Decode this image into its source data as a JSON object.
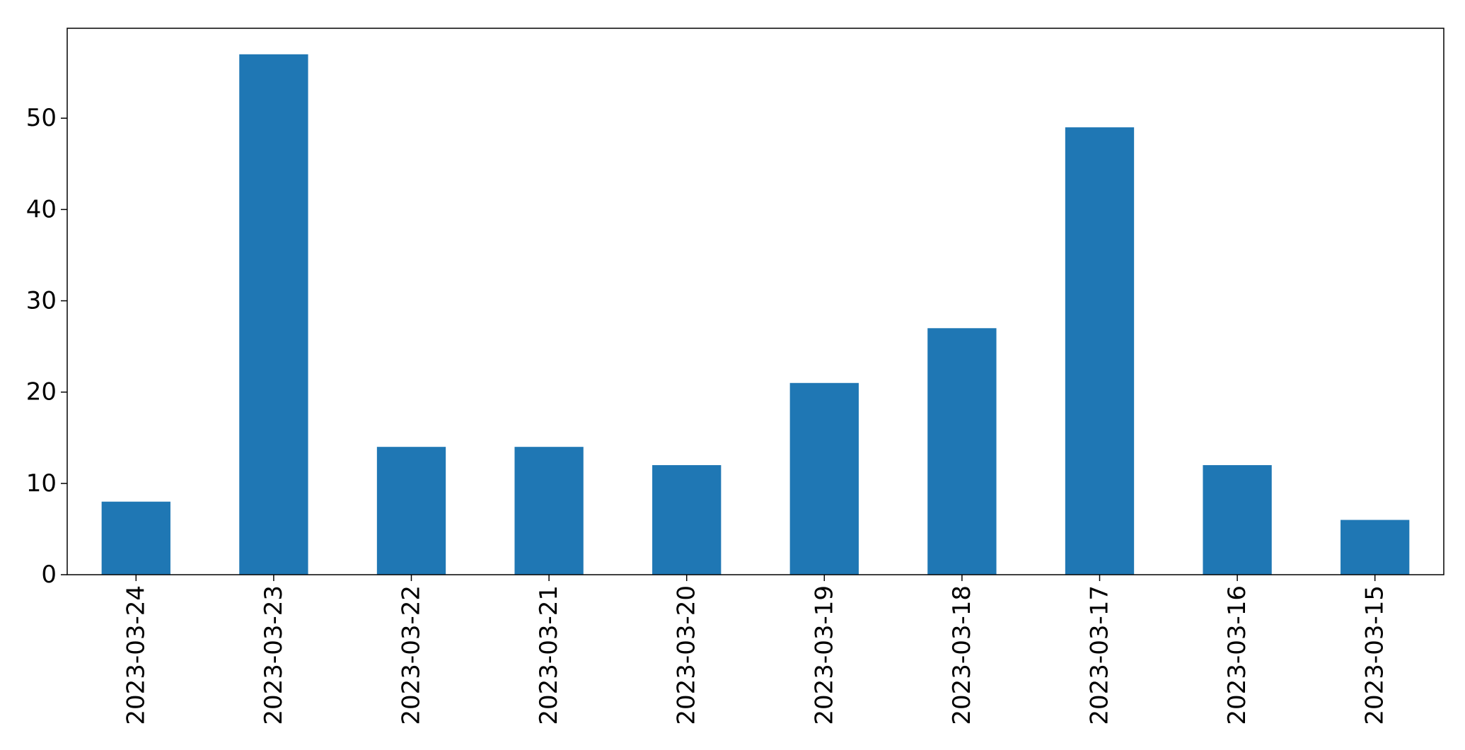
{
  "chart_data": {
    "type": "bar",
    "categories": [
      "2023-03-24",
      "2023-03-23",
      "2023-03-22",
      "2023-03-21",
      "2023-03-20",
      "2023-03-19",
      "2023-03-18",
      "2023-03-17",
      "2023-03-16",
      "2023-03-15"
    ],
    "values": [
      8,
      57,
      14,
      14,
      12,
      21,
      27,
      49,
      12,
      6
    ],
    "title": "",
    "xlabel": "",
    "ylabel": "",
    "ylim": [
      0,
      59.85
    ],
    "yticks": [
      0,
      10,
      20,
      30,
      40,
      50
    ],
    "grid": false,
    "legend": "none",
    "colors": {
      "bar": "#1f77b4",
      "axis": "#000000"
    }
  }
}
